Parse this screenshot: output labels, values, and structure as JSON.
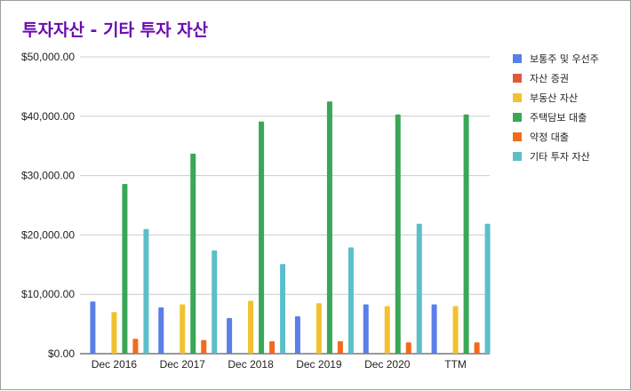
{
  "chart_data": {
    "type": "bar",
    "title": "투자자산 - 기타 투자 자산",
    "xlabel": "",
    "ylabel": "",
    "categories": [
      "Dec 2016",
      "Dec 2017",
      "Dec 2018",
      "Dec 2019",
      "Dec 2020",
      "TTM"
    ],
    "ylim": [
      0,
      50000
    ],
    "yticks": [
      "$0.00",
      "$10,000.00",
      "$20,000.00",
      "$30,000.00",
      "$40,000.00",
      "$50,000.00"
    ],
    "yticks_values": [
      0,
      10000,
      20000,
      30000,
      40000,
      50000
    ],
    "grid": true,
    "legend_position": "right",
    "series": [
      {
        "name": "보통주 및 우선주",
        "color": "#5b7fe8",
        "values": [
          8800,
          7800,
          6000,
          6300,
          8300,
          8300
        ]
      },
      {
        "name": "자산 증권",
        "color": "#e05a3a",
        "values": [
          0,
          0,
          0,
          0,
          0,
          0
        ]
      },
      {
        "name": "부동산 자산",
        "color": "#f2c12e",
        "values": [
          7000,
          8300,
          8900,
          8500,
          8000,
          8000
        ]
      },
      {
        "name": "주택담보 대출",
        "color": "#3aa757",
        "values": [
          28600,
          33700,
          39100,
          42500,
          40300,
          40300
        ]
      },
      {
        "name": "약정 대출",
        "color": "#f26b1d",
        "values": [
          2500,
          2300,
          2100,
          2100,
          1900,
          1900
        ]
      },
      {
        "name": "기타 투자 자산",
        "color": "#5bbfc9",
        "values": [
          21000,
          17400,
          15100,
          17900,
          21900,
          21900
        ]
      }
    ]
  }
}
